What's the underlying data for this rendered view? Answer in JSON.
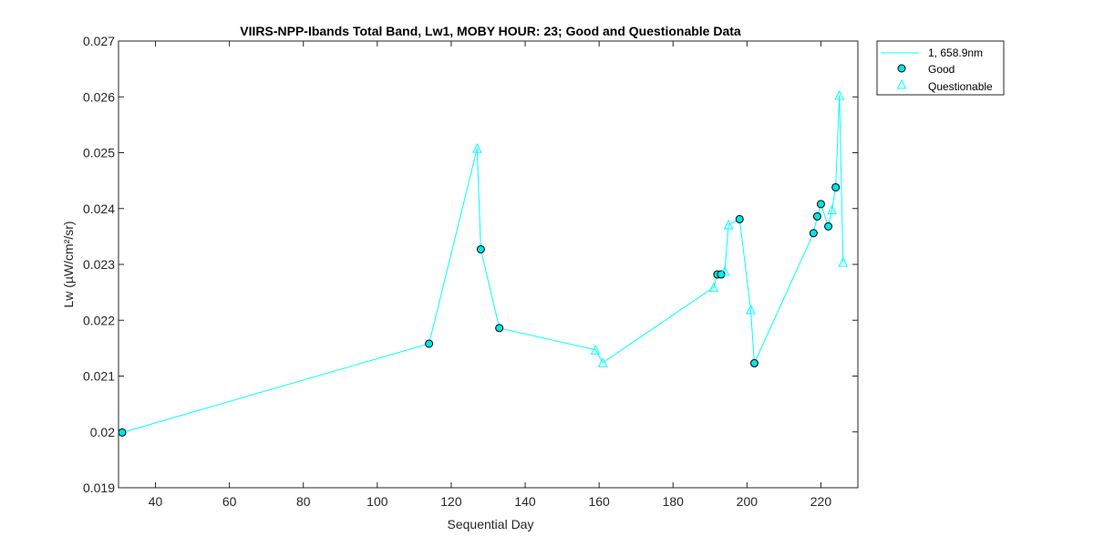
{
  "chart_data": {
    "type": "line",
    "title": "VIIRS-NPP-Ibands Total Band,  Lw1, MOBY HOUR: 23;  Good and Questionable Data",
    "xlabel": "Sequential Day",
    "ylabel": "Lw (µW/cm²/sr)",
    "xlim": [
      30,
      230
    ],
    "ylim": [
      0.019,
      0.027
    ],
    "xticks": [
      40,
      60,
      80,
      100,
      120,
      140,
      160,
      180,
      200,
      220
    ],
    "xtick_labels": [
      "40",
      "60",
      "80",
      "100",
      "120",
      "140",
      "160",
      "180",
      "200",
      "220"
    ],
    "yticks": [
      0.019,
      0.02,
      0.021,
      0.022,
      0.023,
      0.024,
      0.025,
      0.026,
      0.027
    ],
    "ytick_labels": [
      "0.019",
      "0.02",
      "0.021",
      "0.022",
      "0.023",
      "0.024",
      "0.025",
      "0.026",
      "0.027"
    ],
    "grid": false,
    "legend_position": "outside-top-right",
    "color": "#00ffff",
    "marker_face_good": "#00e5e5",
    "series": [
      {
        "name": "1, 658.9nm",
        "points": [
          {
            "x": 31,
            "y": 0.01999,
            "q": "good"
          },
          {
            "x": 114,
            "y": 0.02158,
            "q": "good"
          },
          {
            "x": 127,
            "y": 0.02508,
            "q": "questionable"
          },
          {
            "x": 128,
            "y": 0.02327,
            "q": "good"
          },
          {
            "x": 133,
            "y": 0.02186,
            "q": "good"
          },
          {
            "x": 159,
            "y": 0.02147,
            "q": "questionable"
          },
          {
            "x": 161,
            "y": 0.02124,
            "q": "questionable"
          },
          {
            "x": 191,
            "y": 0.02259,
            "q": "questionable"
          },
          {
            "x": 192,
            "y": 0.02282,
            "q": "good"
          },
          {
            "x": 193,
            "y": 0.02282,
            "q": "good"
          },
          {
            "x": 194,
            "y": 0.02288,
            "q": "questionable"
          },
          {
            "x": 195,
            "y": 0.02371,
            "q": "questionable"
          },
          {
            "x": 198,
            "y": 0.02381,
            "q": "good"
          },
          {
            "x": 201,
            "y": 0.02219,
            "q": "questionable"
          },
          {
            "x": 202,
            "y": 0.02123,
            "q": "good"
          },
          {
            "x": 218,
            "y": 0.02356,
            "q": "good"
          },
          {
            "x": 219,
            "y": 0.02386,
            "q": "good"
          },
          {
            "x": 220,
            "y": 0.02408,
            "q": "good"
          },
          {
            "x": 222,
            "y": 0.02368,
            "q": "good"
          },
          {
            "x": 223,
            "y": 0.02398,
            "q": "questionable"
          },
          {
            "x": 224,
            "y": 0.02438,
            "q": "good"
          },
          {
            "x": 225,
            "y": 0.02603,
            "q": "questionable"
          },
          {
            "x": 226,
            "y": 0.02304,
            "q": "questionable"
          }
        ]
      }
    ],
    "legend_entries": [
      "1, 658.9nm",
      "Good",
      "Questionable"
    ]
  }
}
